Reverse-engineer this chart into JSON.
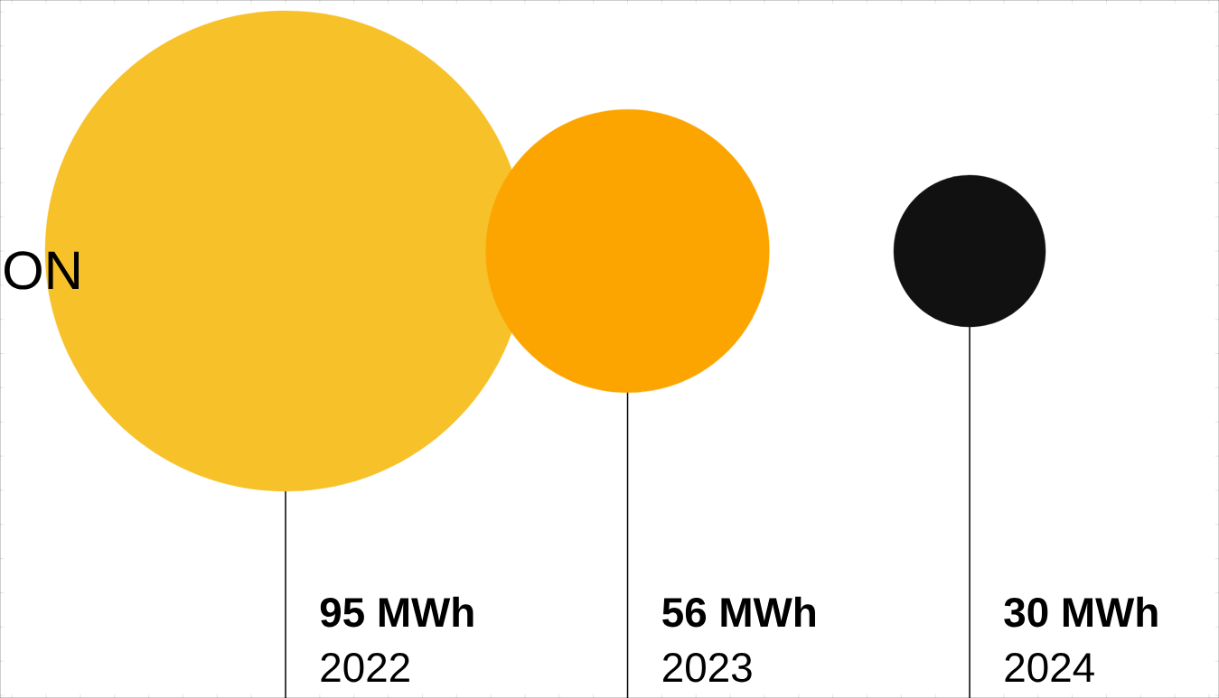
{
  "chart_data": {
    "type": "other",
    "categories": [
      "2022",
      "2023",
      "2024"
    ],
    "values": [
      95,
      56,
      30
    ],
    "colors": [
      "#f7c129",
      "#fca500",
      "#111111"
    ],
    "value_labels": [
      "95 MWh",
      "56 MWh",
      "30 MWh"
    ],
    "annotations": [
      "ON"
    ]
  }
}
